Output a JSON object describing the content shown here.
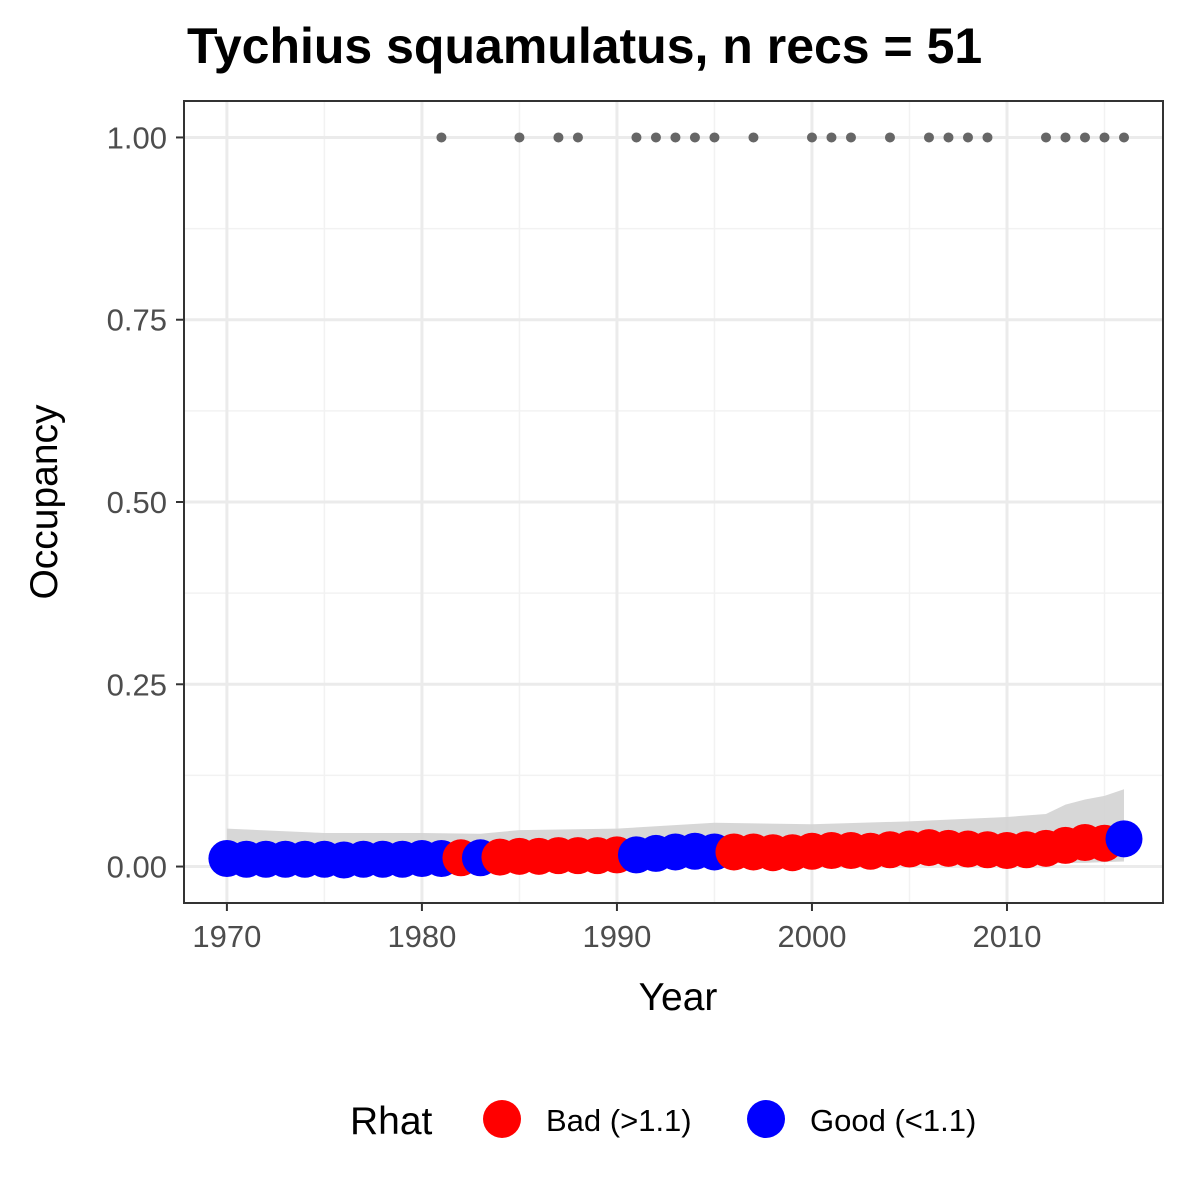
{
  "chart_data": {
    "type": "scatter",
    "title": "Tychius squamulatus, n recs = 51",
    "xlabel": "Year",
    "ylabel": "Occupancy",
    "xlim": [
      1967.8,
      2018.0
    ],
    "ylim": [
      -0.05,
      1.05
    ],
    "x_ticks": [
      1970,
      1980,
      1990,
      2000,
      2010
    ],
    "x_tick_labels": [
      "1970",
      "1980",
      "1990",
      "2000",
      "2010"
    ],
    "y_ticks": [
      0.0,
      0.25,
      0.5,
      0.75,
      1.0
    ],
    "y_tick_labels": [
      "0.00",
      "0.25",
      "0.50",
      "0.75",
      "1.00"
    ],
    "grid": true,
    "legend": {
      "title": "Rhat",
      "position": "bottom",
      "entries": [
        {
          "label": "Bad (>1.1)",
          "color": "#ff0000"
        },
        {
          "label": "Good (<1.1)",
          "color": "#0000ff"
        }
      ]
    },
    "colors": {
      "bad": "#ff0000",
      "good": "#0000ff",
      "ribbon": "#d3d3d3",
      "records": "#666666"
    },
    "series": [
      {
        "name": "Occupancy",
        "x": [
          1970,
          1971,
          1972,
          1973,
          1974,
          1975,
          1976,
          1977,
          1978,
          1979,
          1980,
          1981,
          1982,
          1983,
          1984,
          1985,
          1986,
          1987,
          1988,
          1989,
          1990,
          1991,
          1992,
          1993,
          1994,
          1995,
          1996,
          1997,
          1998,
          1999,
          2000,
          2001,
          2002,
          2003,
          2004,
          2005,
          2006,
          2007,
          2008,
          2009,
          2010,
          2011,
          2012,
          2013,
          2014,
          2015,
          2016
        ],
        "y": [
          0.011,
          0.01,
          0.01,
          0.01,
          0.01,
          0.01,
          0.009,
          0.01,
          0.01,
          0.01,
          0.011,
          0.011,
          0.012,
          0.012,
          0.013,
          0.014,
          0.014,
          0.015,
          0.015,
          0.015,
          0.016,
          0.016,
          0.018,
          0.02,
          0.021,
          0.02,
          0.02,
          0.02,
          0.019,
          0.019,
          0.021,
          0.022,
          0.022,
          0.021,
          0.023,
          0.024,
          0.026,
          0.025,
          0.024,
          0.023,
          0.022,
          0.023,
          0.025,
          0.029,
          0.033,
          0.032,
          0.038
        ],
        "rhat": [
          "Good",
          "Good",
          "Good",
          "Good",
          "Good",
          "Good",
          "Good",
          "Good",
          "Good",
          "Good",
          "Good",
          "Good",
          "Bad",
          "Good",
          "Bad",
          "Bad",
          "Bad",
          "Bad",
          "Bad",
          "Bad",
          "Bad",
          "Good",
          "Good",
          "Good",
          "Good",
          "Good",
          "Bad",
          "Bad",
          "Bad",
          "Bad",
          "Bad",
          "Bad",
          "Bad",
          "Bad",
          "Bad",
          "Bad",
          "Bad",
          "Bad",
          "Bad",
          "Bad",
          "Bad",
          "Bad",
          "Bad",
          "Bad",
          "Bad",
          "Bad",
          "Good"
        ]
      },
      {
        "name": "Ribbon",
        "x": [
          1970,
          1975,
          1980,
          1983,
          1985,
          1990,
          1995,
          2000,
          2005,
          2010,
          2012,
          2013,
          2014,
          2015,
          2016
        ],
        "lower": [
          0.0,
          0.0,
          0.0,
          0.0,
          0.001,
          0.001,
          0.002,
          0.002,
          0.003,
          0.003,
          0.004,
          0.005,
          0.005,
          0.006,
          0.007
        ],
        "upper": [
          0.052,
          0.046,
          0.046,
          0.045,
          0.05,
          0.052,
          0.06,
          0.058,
          0.062,
          0.068,
          0.072,
          0.085,
          0.092,
          0.097,
          0.106
        ]
      },
      {
        "name": "Records",
        "x": [
          1981,
          1985,
          1987,
          1988,
          1991,
          1992,
          1993,
          1994,
          1995,
          1997,
          2000,
          2001,
          2002,
          2004,
          2006,
          2007,
          2008,
          2009,
          2012,
          2013,
          2014,
          2015,
          2016
        ],
        "y": [
          1,
          1,
          1,
          1,
          1,
          1,
          1,
          1,
          1,
          1,
          1,
          1,
          1,
          1,
          1,
          1,
          1,
          1,
          1,
          1,
          1,
          1,
          1
        ]
      }
    ]
  }
}
